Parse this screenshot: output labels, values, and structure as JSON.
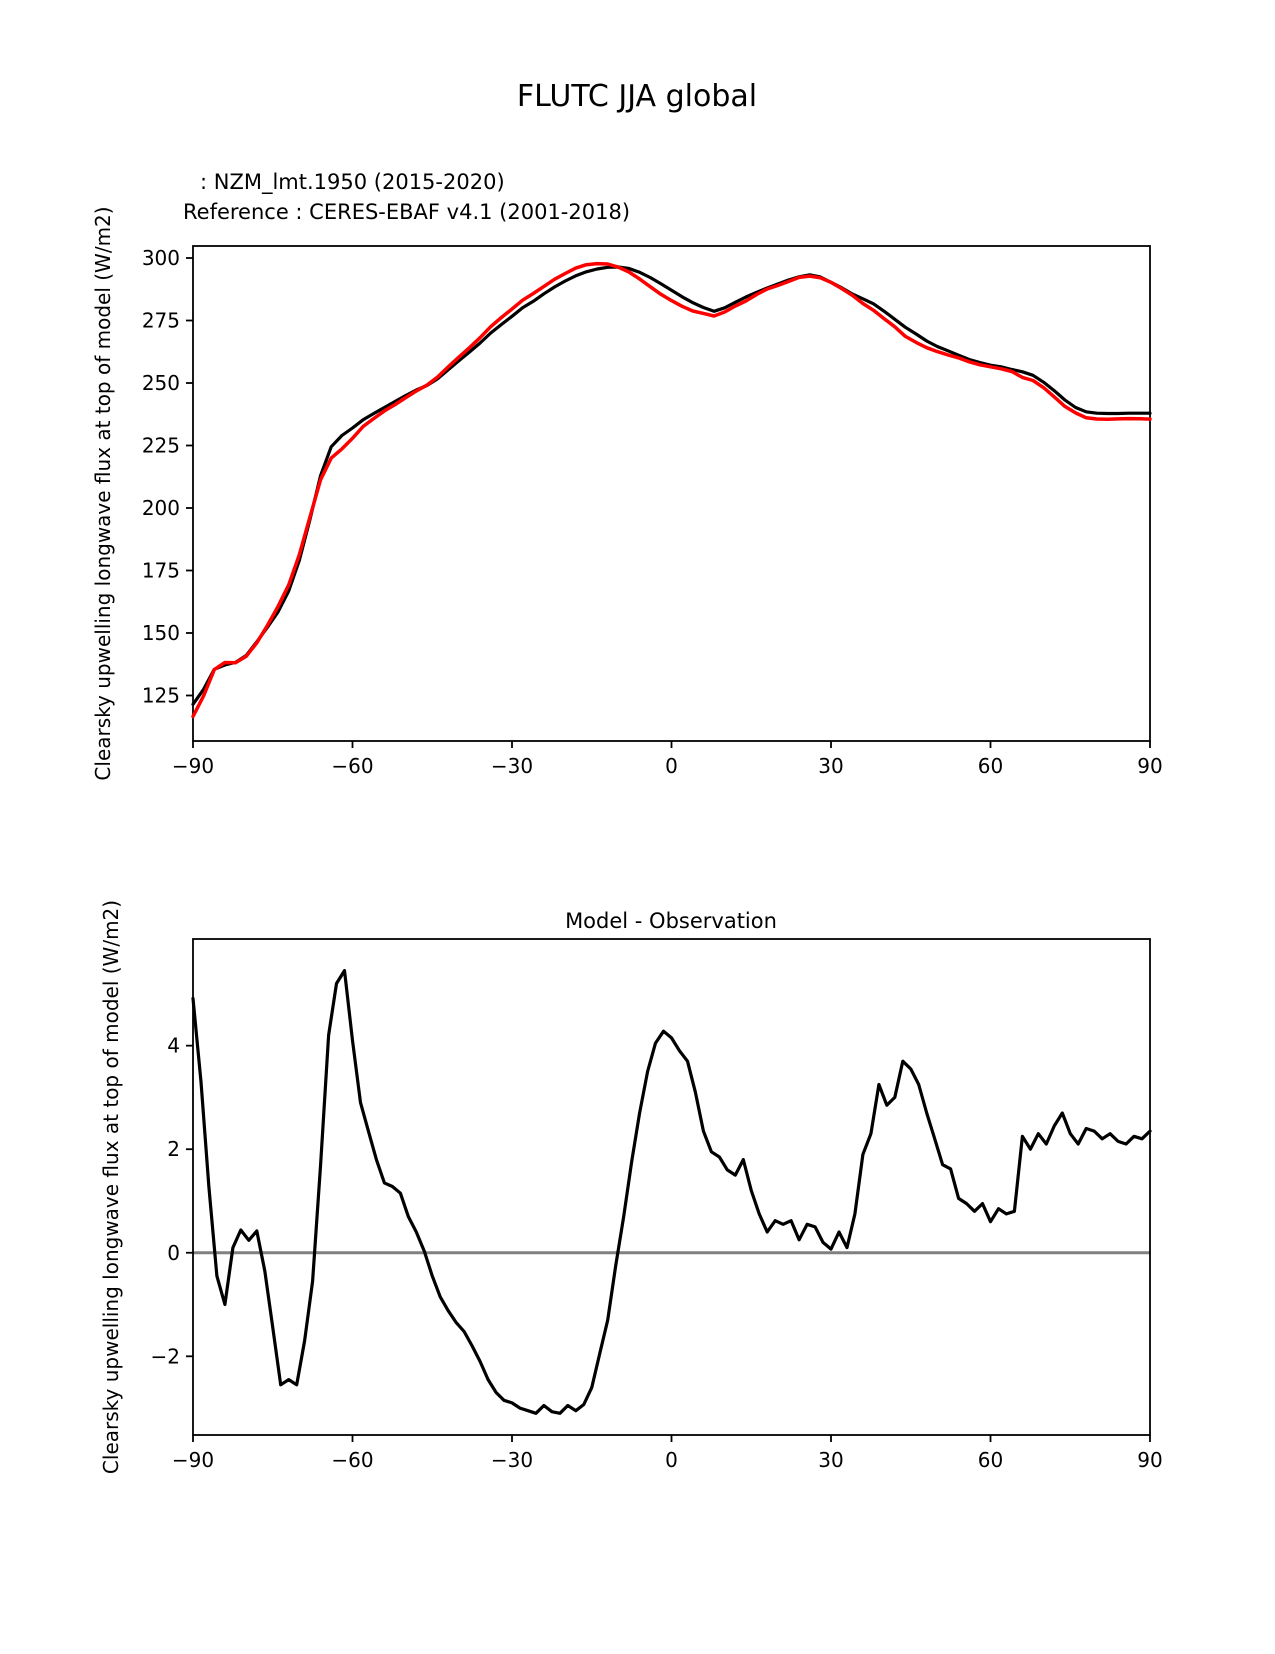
{
  "figure": {
    "title": "FLUTC JJA global"
  },
  "legend": {
    "model": ": NZM_lmt.1950 (2015-2020)",
    "reference": "Reference : CERES-EBAF v4.1 (2001-2018)"
  },
  "colors": {
    "model": "#000000",
    "reference": "#ff0000",
    "zero_line": "#808080"
  },
  "chart_data": [
    {
      "type": "line",
      "title": "",
      "xlabel": "",
      "ylabel": "Clearsky upwelling longwave flux at top of model (W/m2)",
      "xlim": [
        -90,
        90
      ],
      "ylim": [
        106.8,
        304.8
      ],
      "grid": false,
      "legend_position": "above axes, upper left",
      "xtick_values": [
        -90,
        -60,
        -30,
        0,
        30,
        60,
        90
      ],
      "xtick_labels": [
        "−90",
        "−60",
        "−30",
        "0",
        "30",
        "60",
        "90"
      ],
      "ytick_values": [
        125,
        150,
        175,
        200,
        225,
        250,
        275,
        300
      ],
      "ytick_labels": [
        "125",
        "150",
        "175",
        "200",
        "225",
        "250",
        "275",
        "300"
      ],
      "series": [
        {
          "name": "NZM_lmt.1950 (2015-2020)",
          "color": "#000000",
          "x_start": -90,
          "x_step": 2,
          "values": [
            121.5,
            127.5,
            135.5,
            137.2,
            138.3,
            141,
            146.5,
            152.3,
            158.5,
            166.8,
            179,
            195.5,
            213,
            224.5,
            229,
            232,
            235.3,
            237.8,
            240.2,
            242.6,
            245,
            247.2,
            249,
            251.7,
            255.3,
            258.9,
            262.4,
            266,
            270,
            273.4,
            276.7,
            280.1,
            282.7,
            285.7,
            288.4,
            290.8,
            292.9,
            294.5,
            295.6,
            296.3,
            296.4,
            295.8,
            294.3,
            292.2,
            289.7,
            287.1,
            284.5,
            282.1,
            280.2,
            278.7,
            280.1,
            282.3,
            284.4,
            286.3,
            288,
            289.6,
            291.2,
            292.5,
            293.3,
            292.4,
            290.3,
            288.1,
            285.6,
            283.7,
            281.7,
            278.7,
            275.5,
            272.3,
            269.6,
            266.8,
            264.6,
            262.9,
            261.1,
            259.4,
            258.2,
            257.1,
            256.5,
            255.4,
            254.5,
            253.1,
            250.3,
            246.9,
            243.2,
            240.2,
            238.5,
            237.9,
            237.8,
            237.8,
            237.9,
            237.9,
            237.9
          ]
        },
        {
          "name": "CERES-EBAF v4.1 (2001-2018)",
          "color": "#ff0000",
          "derived": "model values minus the Model - Observation difference series"
        }
      ]
    },
    {
      "type": "line",
      "title": "Model - Observation",
      "xlabel": "",
      "ylabel": "Clearsky upwelling longwave flux at top of model (W/m2)",
      "xlim": [
        -90,
        90
      ],
      "ylim": [
        -3.52,
        6.06
      ],
      "grid": false,
      "zero_line": true,
      "xtick_values": [
        -90,
        -60,
        -30,
        0,
        30,
        60,
        90
      ],
      "xtick_labels": [
        "−90",
        "−60",
        "−30",
        "0",
        "30",
        "60",
        "90"
      ],
      "ytick_values": [
        -2,
        0,
        2,
        4
      ],
      "ytick_labels": [
        "−2",
        "0",
        "2",
        "4"
      ],
      "series": [
        {
          "name": "Model - Observation",
          "color": "#000000",
          "x_start": -90,
          "x_step": 1.5,
          "values": [
            4.91,
            3.3,
            1.27,
            -0.45,
            -1.0,
            0.1,
            0.44,
            0.24,
            0.42,
            -0.35,
            -1.45,
            -2.55,
            -2.45,
            -2.55,
            -1.7,
            -0.55,
            1.7,
            4.2,
            5.2,
            5.45,
            4.1,
            2.9,
            2.35,
            1.8,
            1.35,
            1.28,
            1.15,
            0.7,
            0.4,
            0.03,
            -0.45,
            -0.85,
            -1.12,
            -1.35,
            -1.52,
            -1.8,
            -2.1,
            -2.45,
            -2.7,
            -2.85,
            -2.9,
            -3.0,
            -3.05,
            -3.1,
            -2.95,
            -3.07,
            -3.1,
            -2.95,
            -3.05,
            -2.93,
            -2.6,
            -1.95,
            -1.3,
            -0.25,
            0.7,
            1.75,
            2.7,
            3.5,
            4.05,
            4.28,
            4.15,
            3.9,
            3.7,
            3.1,
            2.35,
            1.95,
            1.85,
            1.6,
            1.5,
            1.8,
            1.2,
            0.75,
            0.4,
            0.62,
            0.55,
            0.62,
            0.25,
            0.55,
            0.5,
            0.2,
            0.07,
            0.4,
            0.1,
            0.75,
            1.9,
            2.3,
            3.25,
            2.85,
            3.0,
            3.7,
            3.55,
            3.25,
            2.7,
            2.2,
            1.7,
            1.62,
            1.05,
            0.95,
            0.8,
            0.95,
            0.6,
            0.85,
            0.75,
            0.8,
            2.25,
            2.0,
            2.3,
            2.1,
            2.45,
            2.7,
            2.3,
            2.1,
            2.4,
            2.35,
            2.2,
            2.3,
            2.15,
            2.1,
            2.25,
            2.2,
            2.35
          ]
        }
      ]
    }
  ]
}
